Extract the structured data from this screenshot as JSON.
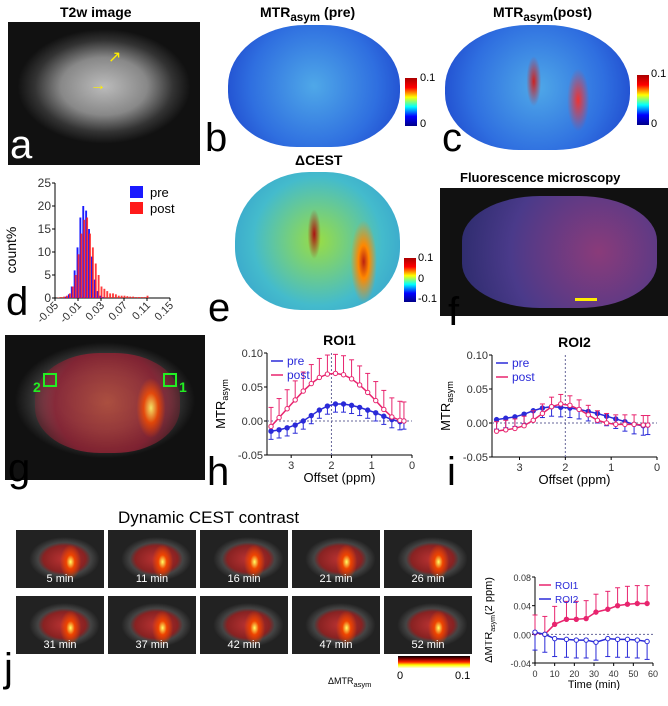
{
  "panels": {
    "a": {
      "letter": "a",
      "title": "T2w image"
    },
    "b": {
      "letter": "b",
      "title": "MTR",
      "title_sub": "asym",
      "title_rest": " (pre)",
      "cbar": [
        "0.1",
        "0"
      ]
    },
    "c": {
      "letter": "c",
      "title": "MTR",
      "title_sub": "asym",
      "title_rest": "(post)",
      "cbar": [
        "0.1",
        "0"
      ]
    },
    "d": {
      "letter": "d"
    },
    "e": {
      "letter": "e",
      "title": "ΔCEST",
      "cbar": [
        "0.1",
        "0",
        "-0.1"
      ]
    },
    "f": {
      "letter": "f",
      "title": "Fluorescence microscopy"
    },
    "g": {
      "letter": "g",
      "roi_labels": [
        "2",
        "1"
      ]
    },
    "h": {
      "letter": "h"
    },
    "i": {
      "letter": "i"
    },
    "j": {
      "letter": "j",
      "title": "Dynamic CEST contrast",
      "times": [
        "5 min",
        "11 min",
        "16 min",
        "21 min",
        "26 min",
        "31 min",
        "37 min",
        "42 min",
        "47 min",
        "52  min"
      ],
      "cbar_label": "ΔMTR",
      "cbar_label_sub": "asym",
      "cbar": [
        "0",
        "0.1"
      ]
    }
  },
  "colors": {
    "pre": "#1a1aff",
    "post": "#ff1a1a",
    "roi_pre": "#2a2ad8",
    "roi_post": "#e8246e",
    "roi_box": "#22ee22",
    "arrow": "#ffee00"
  },
  "chart_data": [
    {
      "id": "d",
      "type": "bar",
      "ylabel": "count%",
      "legend": [
        "pre",
        "post"
      ],
      "legend_placement": "top-right",
      "ylim": [
        0,
        25
      ],
      "yticks": [
        "0",
        "5",
        "10",
        "15",
        "20",
        "25"
      ],
      "xticks": [
        "-0.05",
        "-0.01",
        "0.03",
        "0.07",
        "0.11",
        "0.15"
      ],
      "xlim": [
        -0.05,
        0.15
      ],
      "bin_width": 0.005,
      "bin_start": -0.045,
      "series": [
        {
          "name": "pre",
          "values": [
            0,
            0,
            0,
            0.3,
            0.8,
            2.5,
            6,
            11,
            17.5,
            20,
            19,
            15,
            9,
            4,
            1.5,
            0.5,
            0.2,
            0,
            0,
            0,
            0,
            0,
            0,
            0,
            0,
            0,
            0,
            0,
            0,
            0,
            0,
            0,
            0,
            0,
            0,
            0,
            0,
            0,
            0,
            0
          ]
        },
        {
          "name": "post",
          "values": [
            0.1,
            0.2,
            0.3,
            0.5,
            1,
            2.5,
            5,
            9.5,
            14,
            17,
            17.5,
            14,
            11,
            7.5,
            5,
            2.5,
            2,
            1.5,
            1,
            1,
            0.8,
            0.5,
            0.5,
            0.5,
            0.4,
            0.3,
            0.3,
            0.2,
            0.2,
            0.2,
            0.2,
            0.5,
            0,
            0,
            0,
            0,
            0,
            0,
            0,
            0
          ]
        }
      ]
    },
    {
      "id": "h",
      "type": "line",
      "title": "ROI1",
      "xlabel": "Offset (ppm)",
      "ylabel": "MTR",
      "ylabel_sub": "asym",
      "xlim": [
        3.6,
        0
      ],
      "ylim": [
        -0.05,
        0.1
      ],
      "xticks": [
        "3",
        "2",
        "1",
        "0"
      ],
      "yticks": [
        "-0.05",
        "0.00",
        "0.05",
        "0.10"
      ],
      "vline": 2,
      "legend_placement": "top-left",
      "x": [
        3.5,
        3.3,
        3.1,
        2.9,
        2.7,
        2.5,
        2.3,
        2.1,
        1.9,
        1.7,
        1.5,
        1.3,
        1.1,
        0.9,
        0.7,
        0.5,
        0.3,
        0.2
      ],
      "series": [
        {
          "name": "pre",
          "values": [
            -0.015,
            -0.013,
            -0.01,
            -0.006,
            0,
            0.008,
            0.016,
            0.022,
            0.025,
            0.025,
            0.023,
            0.02,
            0.016,
            0.012,
            0.007,
            0.002,
            -0.001,
            0
          ],
          "err": 0.012
        },
        {
          "name": "post",
          "values": [
            -0.008,
            0.005,
            0.018,
            0.031,
            0.044,
            0.055,
            0.064,
            0.069,
            0.07,
            0.068,
            0.062,
            0.053,
            0.042,
            0.03,
            0.017,
            0.006,
            0.001,
            0
          ],
          "err": 0.028
        }
      ]
    },
    {
      "id": "i",
      "type": "line",
      "title": "ROI2",
      "xlabel": "Offset (ppm)",
      "ylabel": "MTR",
      "ylabel_sub": "asym",
      "xlim": [
        3.6,
        0
      ],
      "ylim": [
        -0.05,
        0.1
      ],
      "xticks": [
        "3",
        "2",
        "1",
        "0"
      ],
      "yticks": [
        "-0.05",
        "0.00",
        "0.05",
        "0.10"
      ],
      "vline": 2,
      "legend_placement": "top-left",
      "x": [
        3.5,
        3.3,
        3.1,
        2.9,
        2.7,
        2.5,
        2.3,
        2.1,
        1.9,
        1.7,
        1.5,
        1.3,
        1.1,
        0.9,
        0.7,
        0.5,
        0.3,
        0.2
      ],
      "series": [
        {
          "name": "pre",
          "values": [
            0.005,
            0.007,
            0.009,
            0.013,
            0.018,
            0.022,
            0.024,
            0.023,
            0.022,
            0.02,
            0.017,
            0.014,
            0.01,
            0.006,
            0.002,
            -0.002,
            -0.004,
            -0.003
          ],
          "err": 0.014
        },
        {
          "name": "post",
          "values": [
            -0.012,
            -0.01,
            -0.008,
            -0.004,
            0.004,
            0.014,
            0.024,
            0.028,
            0.026,
            0.02,
            0.012,
            0.004,
            0,
            -0.002,
            -0.002,
            -0.002,
            -0.003,
            -0.003
          ],
          "err": 0.014
        }
      ]
    },
    {
      "id": "t",
      "type": "line",
      "xlabel": "Time (min)",
      "ylabel": "ΔMTR",
      "ylabel_sub": "asym",
      "ylabel_rest": "(2 ppm)",
      "xlim": [
        0,
        60
      ],
      "ylim": [
        -0.04,
        0.08
      ],
      "xticks": [
        "0",
        "10",
        "20",
        "30",
        "40",
        "50",
        "60"
      ],
      "yticks": [
        "-0.04",
        "0.00",
        "0.04",
        "0.08"
      ],
      "legend": [
        "ROI1",
        "ROI2"
      ],
      "legend_placement": "top-left",
      "x": [
        0,
        5,
        10,
        16,
        21,
        26,
        31,
        37,
        42,
        47,
        52,
        57
      ],
      "series": [
        {
          "name": "ROI1",
          "values": [
            0.002,
            0,
            0.014,
            0.021,
            0.021,
            0.022,
            0.031,
            0.035,
            0.04,
            0.042,
            0.043,
            0.043
          ],
          "err": 0.025
        },
        {
          "name": "ROI2",
          "values": [
            0.003,
            0,
            -0.006,
            -0.007,
            -0.008,
            -0.008,
            -0.011,
            -0.006,
            -0.007,
            -0.007,
            -0.008,
            -0.01
          ],
          "err": 0.025
        }
      ]
    }
  ]
}
